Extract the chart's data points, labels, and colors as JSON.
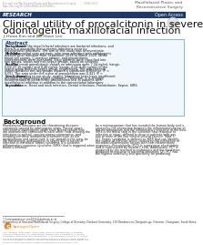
{
  "bg_color": "#ffffff",
  "header_left1": "Kim and Lee Maxillofacial Plastic and Reconstructive Surgery          (2021) 43:3",
  "header_left2": "https://doi.org/10.1186/s40902-020-00288-x",
  "header_journal": "Maxillofacial Plastic and\nReconstructive Surgery",
  "research_bar_color": "#1b3a6b",
  "research_text": "RESEARCH",
  "open_access_text": "Open Access",
  "title_line1": "Clinical utility of procalcitonin in severe",
  "title_line2": "odontogenic maxillofacial infection",
  "authors": "Ji-Hwan Kim and Jae-Hoon Lee",
  "abstract_title": "Abstract",
  "bg_bold": "Background:",
  "bg_text": " Most of the maxillofacial infections are bacterial infections, and there is a possibility that systemic infections occur by maxillofacial infections. The aim of this study was to investigate the diagnostic value of procalcitonin in patients with odontogenic bacterial infections of the maxillofacial region.",
  "me_bold": "Methods:",
  "me_text": " We enrolled sixty patients, who were admitted with odontogenic maxillofacial infection from September 2018 to March 2020. White blood cell counts, C-reactive protein, and procalcitonin concentrations were evaluated. Sixty patients were classified into two groups, sepsis and non-sepsis groups, based on systemic inflammatory response syndrome. A Student t test was performed to statistically analyze the difference in inflammatory markers between sepsis and non-sepsis groups.",
  "re_bold": "Results:",
  "re_text": " The mean procalcitonin values on admission were 7.24 ng/mL (range, 0.09-37.15 ng/mL) and 0.40 ng/mL (range, 0.02-4.46 ng/mL) in the sepsis group and non-sepsis group, respectively. The procalcitonin values between the two groups showed a significant difference (P < 0.05). The area under the curve of procalcitonin was 0.921 (P < 0.001), and the cutoff value of procalcitonin that maximizes the area under the curve was calculated to be 0.87 ng/mL.",
  "co_bold": "Conclusions:",
  "co_text": " According to our study, routine laboratory tests have insufficient accuracy in diagnosing sepsis syndrome. Therefore, it is strongly recommended to perform the procalcitonin test in patients with maxillofacial infection in addition to the conventional laboratory tests to diagnose the systemic inflammatory condition of the patients.",
  "kw_bold": "Keywords:",
  "kw_text": " Abscess, Head and neck infection, Dental infections, Procalcitonin, Sepsis, SIRS",
  "sec_title": "Background",
  "left_col": "Maxillofacial infections are life-threatening diseases commonly caused by odontogenic origin. Fascial space infections of odontogenic origin have lateral spaces that are anatomically connected to each other, thus allowing the infections to spread, causing airway compromise, and invading sensitive anatomical structures such as the mediastinum and spinal cord. It can spread to the area, be life threatening, and progress to sepsis due to bacterial infection in the blood.\n   Sepsis syndrome is a systemic inflammatory response syndrome (SIRS) that is triggered when blood is infected",
  "right_col": "by a microorganism that has invaded the human body and is caused by the interaction between the inflammatory factor of the microorganism and the inflammatory response of the host. SIRS is the initial step in the systemic host response to infection or injury, defined to occur in patients with any two or more of the four clinical criteria listed in Table 1 [1]. Sepsis syndrome is defined as SIRS that can identify the source of infection and is caused by the interaction of microbial inflammatory factors with host inflammatory responses.\n   Procalcitonin (PCT) is a precursor of calcitonin and is synthesized by thyroid C cells. Additionally, PCT is produced by the reaction to endotoxins and the mediators produced in response to bacterial infections [2]. PCT has the highest sensitivity and specificity for predicting",
  "footer1": "* Correspondence: lee1011@dankook.ac.kr",
  "footer2": "Department of Oral and Maxillofacial Surgery, College of Dentistry, Dankook University, 119 Dandaero-ro, Dongnam-gu, Cheonan, Chungnam, South Korea",
  "license_text": "The Author(s). 2021 Open Access This article is licensed under a Creative Commons Attribution 4.0 International License, which permits use, sharing, adaptation, distribution and reproduction in any medium or format, as long as you give appropriate credit to the original author(s) and the source, provide a link to the Creative Commons licence, and indicate if changes were made. The images or other third party material in this article are included in the article's Creative Commons licence, unless indicated otherwise in a credit line to the material. If material is not included in the article's Creative Commons licence and your intended use is not permitted by statutory regulation or exceeds the permitted use, you will need to obtain permission directly from the copyright holder. To view a copy of this licence, visit http://creativecommons.org/licenses/by/4.0/.",
  "abstract_face": "#f0f7fd",
  "abstract_edge": "#6ab0de"
}
